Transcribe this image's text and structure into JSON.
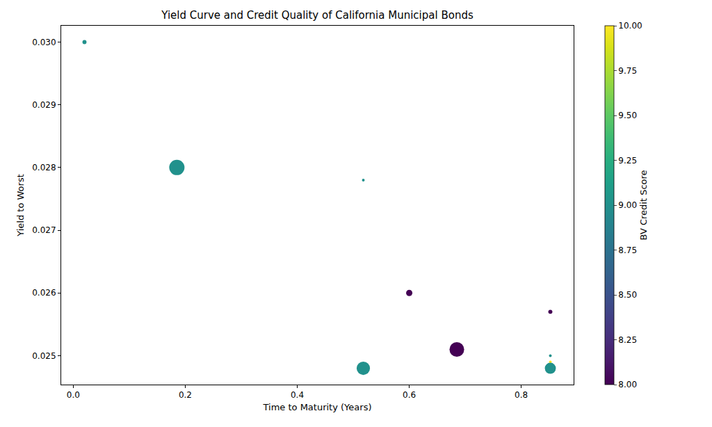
{
  "chart_data": {
    "type": "scatter",
    "title": "Yield Curve and Credit Quality of California Municipal Bonds",
    "x_label": "Time to Maturity (Years)",
    "y_label": "Yield to Worst",
    "x": [
      0.02,
      0.185,
      0.518,
      0.6,
      0.685,
      0.518,
      0.852,
      0.852,
      0.852,
      0.852
    ],
    "values": [
      0.03,
      0.028,
      0.0278,
      0.026,
      0.0251,
      0.0248,
      0.0257,
      0.025,
      0.0249,
      0.0248
    ],
    "sizes": [
      18,
      250,
      8,
      42,
      230,
      190,
      18,
      8,
      8,
      130
    ],
    "color_values": [
      9,
      9,
      9,
      8,
      8,
      9,
      8,
      9,
      10,
      9
    ],
    "xlim": [
      -0.0216,
      0.8936
    ],
    "xticks": [
      {
        "value": 0,
        "label": "0.0"
      },
      {
        "value": 0.2,
        "label": "0.2"
      },
      {
        "value": 0.4,
        "label": "0.4"
      },
      {
        "value": 0.6,
        "label": "0.6"
      },
      {
        "value": 0.8,
        "label": "0.8"
      }
    ],
    "ylim": [
      0.02454,
      0.03026
    ],
    "yticks": [
      0.025,
      0.026,
      0.027,
      0.028,
      0.029,
      {
        "value": 0.03,
        "label": "0.030"
      }
    ],
    "grid": false,
    "colorbar": {
      "title": "BV Credit Score",
      "range": [
        8,
        10
      ],
      "ticks": [
        {
          "value": 8,
          "label": "8.00"
        },
        {
          "value": 8.25,
          "label": "8.25"
        },
        {
          "value": 8.5,
          "label": "8.50"
        },
        {
          "value": 8.75,
          "label": "8.75"
        },
        {
          "value": 9,
          "label": "9.00"
        },
        {
          "value": 9.25,
          "label": "9.25"
        },
        {
          "value": 9.5,
          "label": "9.50"
        },
        {
          "value": 9.75,
          "label": "9.75"
        },
        {
          "value": 10,
          "label": "10.00"
        }
      ]
    }
  }
}
